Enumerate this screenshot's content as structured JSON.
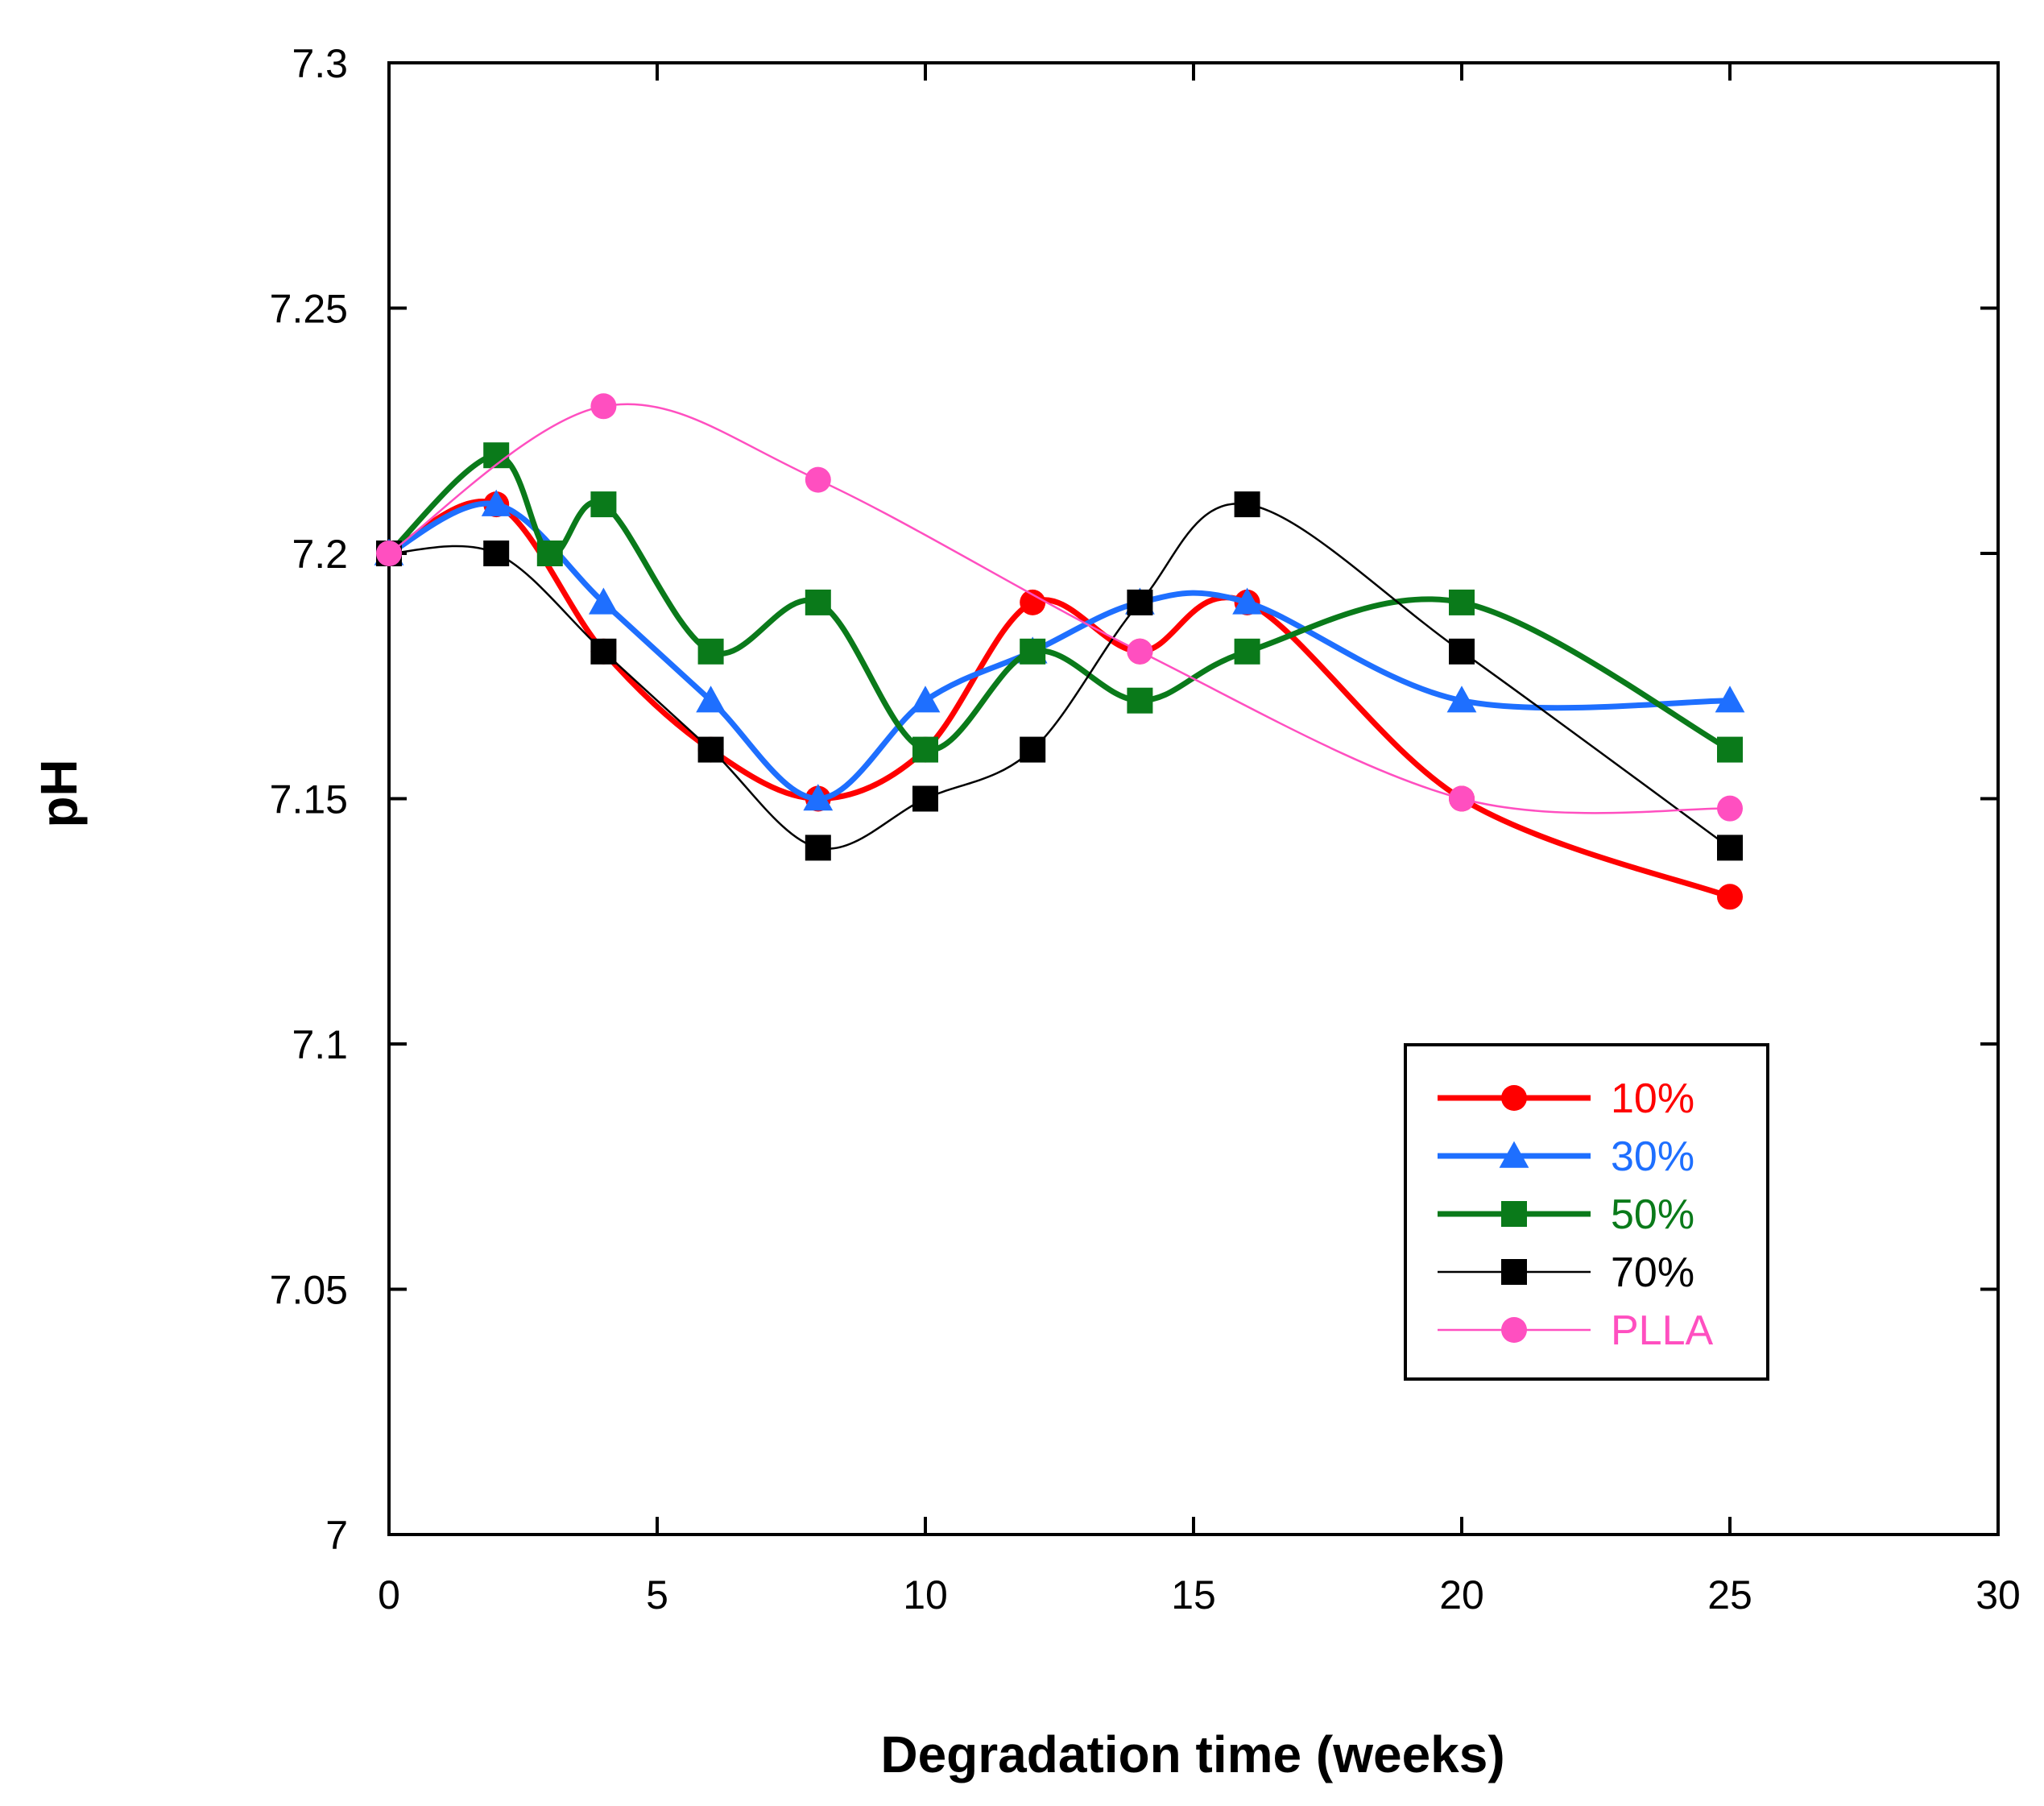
{
  "chart_data": {
    "type": "line",
    "title": "",
    "xlabel": "Degradation time (weeks)",
    "ylabel": "pH",
    "xlim": [
      0,
      30
    ],
    "ylim": [
      7.0,
      7.3
    ],
    "x_ticks": [
      0,
      5,
      10,
      15,
      20,
      25,
      30
    ],
    "x_tick_labels": [
      "0",
      "5",
      "10",
      "15",
      "20",
      "25",
      "30"
    ],
    "y_ticks": [
      7.0,
      7.05,
      7.1,
      7.15,
      7.2,
      7.25,
      7.3
    ],
    "y_tick_labels": [
      "7",
      "7.05",
      "7.1",
      "7.15",
      "7.2",
      "7.25",
      "7.3"
    ],
    "grid": false,
    "legend_position": "lower-right",
    "series": [
      {
        "name": "10%",
        "color": "#ff0000",
        "marker": "circle",
        "line": "thick",
        "x": [
          0,
          2,
          4,
          6,
          8,
          10,
          12,
          14,
          16,
          20,
          25
        ],
        "y": [
          7.2,
          7.21,
          7.18,
          7.16,
          7.15,
          7.16,
          7.19,
          7.18,
          7.19,
          7.15,
          7.13
        ]
      },
      {
        "name": "30%",
        "color": "#1e6fff",
        "marker": "triangle",
        "line": "thick",
        "x": [
          0,
          2,
          4,
          6,
          8,
          10,
          12,
          14,
          16,
          20,
          25
        ],
        "y": [
          7.2,
          7.21,
          7.19,
          7.17,
          7.15,
          7.17,
          7.18,
          7.19,
          7.19,
          7.17,
          7.17
        ]
      },
      {
        "name": "50%",
        "color": "#0a7a1a",
        "marker": "square",
        "line": "thick",
        "x": [
          0,
          2,
          3,
          4,
          6,
          8,
          10,
          12,
          14,
          16,
          20,
          25
        ],
        "y": [
          7.2,
          7.22,
          7.2,
          7.21,
          7.18,
          7.19,
          7.16,
          7.18,
          7.17,
          7.18,
          7.19,
          7.16
        ]
      },
      {
        "name": "70%",
        "color": "#000000",
        "marker": "square",
        "line": "thin",
        "x": [
          0,
          2,
          4,
          6,
          8,
          10,
          12,
          14,
          16,
          20,
          25
        ],
        "y": [
          7.2,
          7.2,
          7.18,
          7.16,
          7.14,
          7.15,
          7.16,
          7.19,
          7.21,
          7.18,
          7.14
        ]
      },
      {
        "name": "PLLA",
        "color": "#ff4fc0",
        "marker": "circle",
        "line": "thin",
        "x": [
          0,
          4,
          8,
          14,
          20,
          25
        ],
        "y": [
          7.2,
          7.23,
          7.215,
          7.18,
          7.15,
          7.148
        ]
      }
    ]
  }
}
